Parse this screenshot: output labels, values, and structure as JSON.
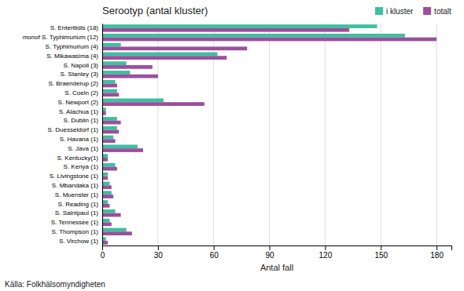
{
  "chart_data": {
    "type": "bar",
    "orientation": "horizontal",
    "title": "Serootyp (antal kluster)",
    "xlabel": "Antal fall",
    "categories": [
      "S. Enteritidis (18)",
      "monof S. Typhimurium (12)",
      "S. Typhimurium (4)",
      "S. Mikawasima (4)",
      "S. Napoli (3)",
      "S. Stanley (3)",
      "S. Braenderup (2)",
      "S. Coeln (2)",
      "S. Newport (2)",
      "S. Alachua (1)",
      "S. Dublin (1)",
      "S. Duesseldorf (1)",
      "S. Havana (1)",
      "S. Java (1)",
      "S. Kentucky(1)",
      "S. Kenya (1)",
      "S. Livingstone (1)",
      "S. Mbandaka (1)",
      "S. Muenster (1)",
      "S. Reading (1)",
      "S. Saintpaul (1)",
      "S. Tennessee (1)",
      "S. Thompson (1)",
      "S. Virchow (1)"
    ],
    "series": [
      {
        "name": "i kluster",
        "color": "#3dbfa0",
        "values": [
          148,
          163,
          10,
          62,
          13,
          15,
          7,
          8,
          33,
          2,
          8,
          8,
          6,
          19,
          3,
          7,
          3,
          4,
          5,
          3,
          7,
          4,
          13,
          2
        ]
      },
      {
        "name": "totalt",
        "color": "#9b4f9b",
        "values": [
          133,
          180,
          78,
          67,
          27,
          30,
          8,
          9,
          55,
          2,
          10,
          9,
          7,
          22,
          3,
          8,
          3,
          5,
          6,
          4,
          10,
          5,
          16,
          3
        ]
      }
    ],
    "xlim": [
      0,
      188
    ],
    "xticks": [
      0,
      30,
      60,
      90,
      120,
      150,
      180
    ],
    "grid": true,
    "legend": "upper right",
    "annotations": [
      "Källa: Folkhälsomyndigheten"
    ]
  }
}
